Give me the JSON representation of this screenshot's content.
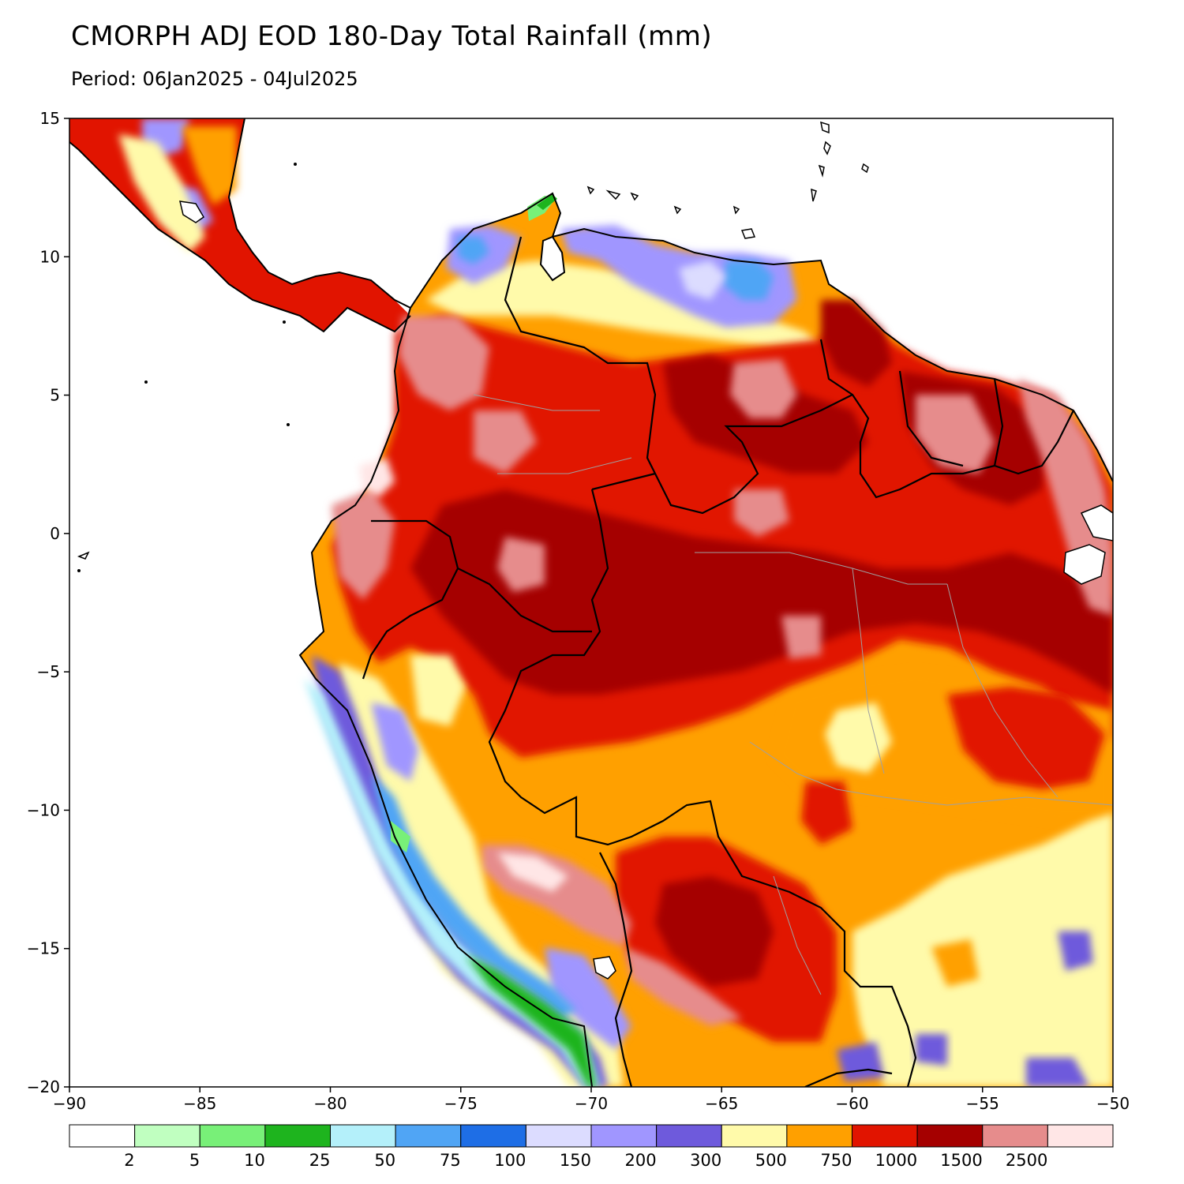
{
  "title": "CMORPH ADJ EOD 180-Day Total Rainfall (mm)",
  "subtitle": "Period: 06Jan2025 - 04Jul2025",
  "map": {
    "lon_range": [
      -90,
      -50
    ],
    "lat_range": [
      -20,
      15
    ],
    "x_ticks": [
      {
        "value": -90,
        "label": "−90"
      },
      {
        "value": -85,
        "label": "−85"
      },
      {
        "value": -80,
        "label": "−80"
      },
      {
        "value": -75,
        "label": "−75"
      },
      {
        "value": -70,
        "label": "−70"
      },
      {
        "value": -65,
        "label": "−65"
      },
      {
        "value": -60,
        "label": "−60"
      },
      {
        "value": -55,
        "label": "−55"
      },
      {
        "value": -50,
        "label": "−50"
      }
    ],
    "y_ticks": [
      {
        "value": 15,
        "label": "15"
      },
      {
        "value": 10,
        "label": "10"
      },
      {
        "value": 5,
        "label": "5"
      },
      {
        "value": 0,
        "label": "0"
      },
      {
        "value": -5,
        "label": "−5"
      },
      {
        "value": -10,
        "label": "−10"
      },
      {
        "value": -15,
        "label": "−15"
      },
      {
        "value": -20,
        "label": "−20"
      }
    ]
  },
  "colorbar": {
    "colors": [
      "#ffffff",
      "#c0ffc0",
      "#78f078",
      "#1eb41e",
      "#b4f0fa",
      "#50a5f5",
      "#1e6ee6",
      "#dcdcff",
      "#a096ff",
      "#6e5adc",
      "#fffaaa",
      "#ffa000",
      "#e11400",
      "#a50000",
      "#e68c8c",
      "#ffe6e6"
    ],
    "labels": [
      "2",
      "5",
      "10",
      "25",
      "50",
      "75",
      "100",
      "150",
      "200",
      "300",
      "500",
      "750",
      "1000",
      "1500",
      "2500"
    ]
  }
}
